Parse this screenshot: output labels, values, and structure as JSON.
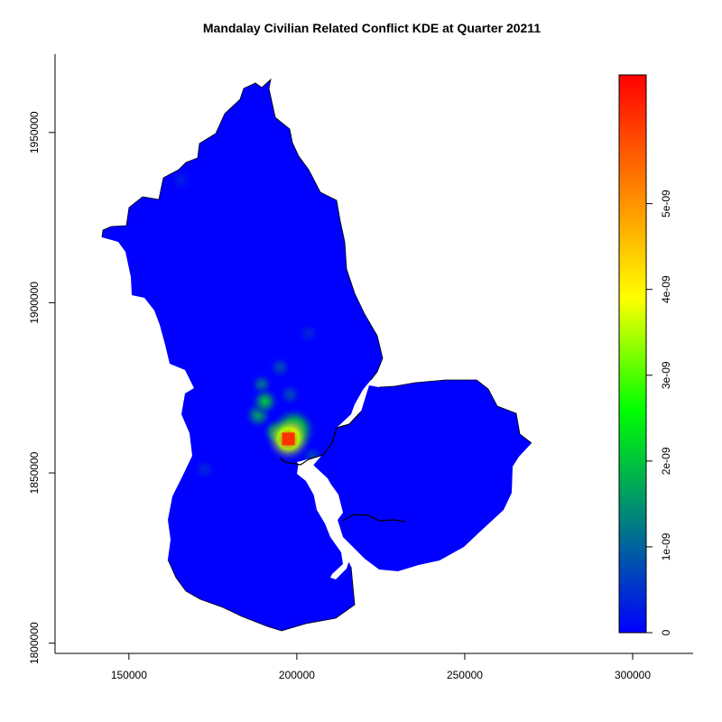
{
  "title": "Mandalay Civilian Related Conflict KDE at Quarter 20211",
  "chart_data": {
    "type": "heatmap",
    "title": "Mandalay Civilian Related Conflict KDE at Quarter 20211",
    "xlabel": "",
    "ylabel": "",
    "xlim": [
      128000,
      318000
    ],
    "ylim": [
      1797000,
      1973000
    ],
    "x_ticks": [
      150000,
      200000,
      250000,
      300000
    ],
    "x_tick_labels": [
      "150000",
      "200000",
      "250000",
      "300000"
    ],
    "y_ticks": [
      1800000,
      1850000,
      1900000,
      1950000
    ],
    "y_tick_labels": [
      "1800000",
      "1850000",
      "1900000",
      "1950000"
    ],
    "background_color": "#0000ff",
    "hotspots": [
      {
        "x": 197500,
        "y": 1860000,
        "value": 6e-09
      },
      {
        "x": 199000,
        "y": 1862500,
        "value": 4.2e-09
      },
      {
        "x": 194000,
        "y": 1862000,
        "value": 3e-09
      },
      {
        "x": 190500,
        "y": 1871000,
        "value": 2.1e-09
      },
      {
        "x": 188500,
        "y": 1867000,
        "value": 1.7e-09
      },
      {
        "x": 189500,
        "y": 1876000,
        "value": 1.2e-09
      },
      {
        "x": 195000,
        "y": 1881000,
        "value": 8e-10
      },
      {
        "x": 204500,
        "y": 1855000,
        "value": 7e-10
      },
      {
        "x": 198000,
        "y": 1873000,
        "value": 8e-10
      },
      {
        "x": 172500,
        "y": 1851000,
        "value": 4e-10
      },
      {
        "x": 203500,
        "y": 1891000,
        "value": 4e-10
      },
      {
        "x": 165500,
        "y": 1936000,
        "value": 3e-10
      }
    ],
    "legend": {
      "position": "right",
      "min": 0,
      "max": 6.5e-09,
      "ticks": [
        0,
        1e-09,
        2e-09,
        3e-09,
        4e-09,
        5e-09
      ],
      "tick_labels": [
        "0",
        "1e-09",
        "2e-09",
        "3e-09",
        "4e-09",
        "5e-09"
      ],
      "colors": [
        "#0000ff",
        "#008080",
        "#00ff00",
        "#ffff00",
        "#ff8000",
        "#ff0000"
      ]
    }
  }
}
